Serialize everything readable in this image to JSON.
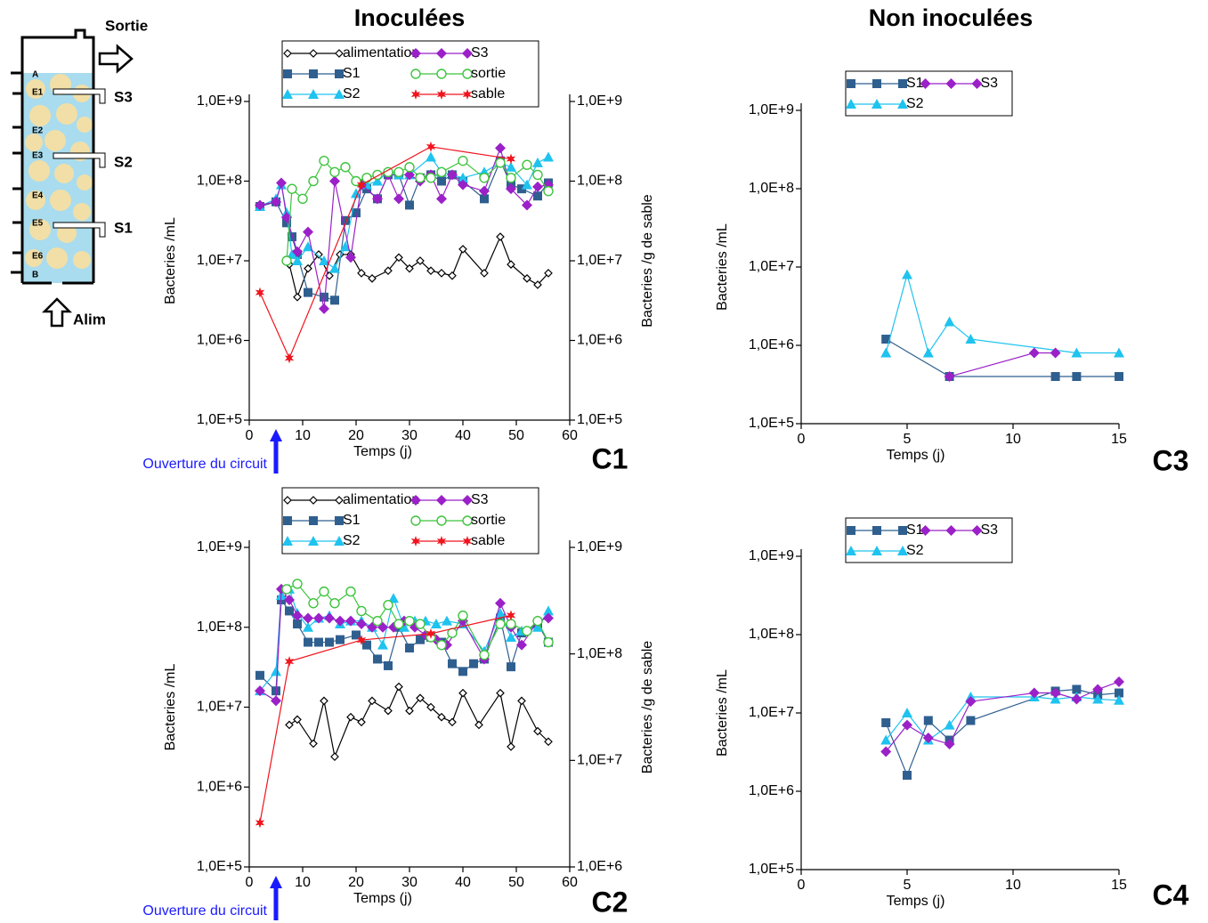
{
  "headings": [
    "Inoculées",
    "Non inoculées"
  ],
  "diagram": {
    "outlet": "Sortie",
    "inlet": "Alim",
    "ports": [
      "S3",
      "S2",
      "S1"
    ],
    "levels": [
      "A",
      "E1",
      "E2",
      "E3",
      "E4",
      "E5",
      "E6",
      "B"
    ]
  },
  "chart_data": [
    {
      "type": "line",
      "label": "C1",
      "log_y": true,
      "xlabel": "Temps (j)",
      "ylabel": "Bacteries /mL",
      "y2label": "Bacteries /g de sable",
      "annotation": {
        "text": "Ouverture du circuit",
        "x": 5
      },
      "xlim": [
        0,
        60
      ],
      "xticks": [
        0,
        10,
        20,
        30,
        40,
        50,
        60
      ],
      "ylim": [
        100000,
        1000000000
      ],
      "yticks": [
        {
          "value": 100000,
          "label": "1,0E+5"
        },
        {
          "value": 1000000,
          "label": "1,0E+6"
        },
        {
          "value": 10000000,
          "label": "1,0E+7"
        },
        {
          "value": 100000000,
          "label": "1,0E+8"
        },
        {
          "value": 1000000000,
          "label": "1,0E+9"
        }
      ],
      "y2lim": [
        100000,
        1000000000
      ],
      "y2ticks": [
        {
          "value": 100000,
          "label": "1,0E+5"
        },
        {
          "value": 1000000,
          "label": "1,0E+6"
        },
        {
          "value": 10000000,
          "label": "1,0E+7"
        },
        {
          "value": 100000000,
          "label": "1,0E+8"
        },
        {
          "value": 1000000000,
          "label": "1,0E+9"
        }
      ],
      "series": [
        {
          "name": "alimentation",
          "color": "#000000",
          "marker": "diamond-open",
          "x": [
            7.5,
            9,
            11,
            13,
            15,
            17,
            19,
            21,
            23,
            26,
            28,
            30,
            32,
            34,
            36,
            38,
            40,
            44,
            47,
            49,
            52,
            54,
            56
          ],
          "values": [
            9000000,
            3500000,
            8000000,
            12000000,
            6500000,
            12000000,
            12000000,
            7000000,
            6000000,
            7500000,
            11000000,
            8000000,
            10000000,
            7500000,
            7000000,
            6500000,
            14000000,
            7000000,
            20000000,
            9000000,
            6000000,
            5000000,
            7000000
          ]
        },
        {
          "name": "S1",
          "color": "#2f5f8f",
          "marker": "square",
          "x": [
            2,
            5,
            7,
            8,
            9,
            11,
            14,
            16,
            18,
            20,
            22,
            24,
            26,
            28,
            30,
            32,
            34,
            36,
            38,
            40,
            44,
            47,
            49,
            51,
            54,
            56
          ],
          "values": [
            48000000,
            55000000,
            30000000,
            20000000,
            12000000,
            4000000,
            3500000,
            3200000,
            32000000,
            40000000,
            80000000,
            60000000,
            120000000,
            120000000,
            50000000,
            110000000,
            120000000,
            100000000,
            120000000,
            100000000,
            60000000,
            180000000,
            90000000,
            80000000,
            65000000,
            95000000
          ]
        },
        {
          "name": "S2",
          "color": "#1ec3ef",
          "marker": "triangle",
          "x": [
            2,
            5,
            6,
            7,
            8,
            9,
            11,
            14,
            16,
            18,
            20,
            22,
            24,
            26,
            28,
            30,
            34,
            36,
            40,
            44,
            47,
            49,
            52,
            54,
            56
          ],
          "values": [
            48000000,
            60000000,
            90000000,
            40000000,
            12000000,
            10000000,
            15000000,
            10000000,
            8000000,
            15000000,
            70000000,
            90000000,
            100000000,
            130000000,
            120000000,
            120000000,
            200000000,
            130000000,
            110000000,
            130000000,
            170000000,
            150000000,
            90000000,
            170000000,
            200000000
          ]
        },
        {
          "name": "S3",
          "color": "#9b20c8",
          "marker": "diamond",
          "x": [
            2,
            5,
            6,
            7,
            9,
            11,
            14,
            16,
            19,
            21,
            24,
            26,
            28,
            30,
            32,
            34,
            36,
            38,
            40,
            44,
            47,
            49,
            52,
            54,
            56
          ],
          "values": [
            50000000,
            55000000,
            95000000,
            35000000,
            13000000,
            23000000,
            2500000,
            100000000,
            11000000,
            90000000,
            60000000,
            120000000,
            60000000,
            120000000,
            100000000,
            120000000,
            60000000,
            120000000,
            90000000,
            75000000,
            260000000,
            80000000,
            50000000,
            85000000,
            90000000
          ]
        },
        {
          "name": "sortie",
          "color": "#3ec43e",
          "marker": "circle-open",
          "x": [
            7,
            8,
            10,
            12,
            14,
            16,
            18,
            20,
            22,
            24,
            26,
            28,
            30,
            32,
            34,
            36,
            40,
            44,
            47,
            49,
            52,
            54,
            56
          ],
          "values": [
            10000000,
            80000000,
            60000000,
            100000000,
            180000000,
            130000000,
            150000000,
            100000000,
            110000000,
            120000000,
            130000000,
            130000000,
            150000000,
            110000000,
            110000000,
            130000000,
            180000000,
            110000000,
            170000000,
            110000000,
            160000000,
            120000000,
            75000000
          ]
        },
        {
          "name": "sable",
          "color": "#f0141e",
          "marker": "star",
          "axis": "y2",
          "x": [
            2,
            7.5,
            21,
            34,
            49
          ],
          "values": [
            4000000,
            600000,
            90000000,
            270000000,
            190000000
          ]
        }
      ]
    },
    {
      "type": "line",
      "label": "C2",
      "log_y": true,
      "xlabel": "Temps (j)",
      "ylabel": "Bacteries /mL",
      "y2label": "Bacteries /g de sable",
      "annotation": {
        "text": "Ouverture du circuit",
        "x": 5
      },
      "xlim": [
        0,
        60
      ],
      "xticks": [
        0,
        10,
        20,
        30,
        40,
        50,
        60
      ],
      "ylim": [
        100000,
        1000000000
      ],
      "yticks": [
        {
          "value": 100000,
          "label": "1,0E+5"
        },
        {
          "value": 1000000,
          "label": "1,0E+6"
        },
        {
          "value": 10000000,
          "label": "1,0E+7"
        },
        {
          "value": 100000000,
          "label": "1,0E+8"
        },
        {
          "value": 1000000000,
          "label": "1,0E+9"
        }
      ],
      "y2lim": [
        1000000,
        1000000000
      ],
      "y2ticks": [
        {
          "value": 1000000,
          "label": "1,0E+6"
        },
        {
          "value": 10000000,
          "label": "1,0E+7"
        },
        {
          "value": 100000000,
          "label": "1,0E+8"
        },
        {
          "value": 1000000000,
          "label": "1,0E+9"
        }
      ],
      "series": [
        {
          "name": "alimentation",
          "color": "#000000",
          "marker": "diamond-open",
          "x": [
            7.5,
            9,
            12,
            14,
            16,
            19,
            21,
            23,
            26,
            28,
            30,
            32,
            34,
            36,
            38,
            40,
            43,
            47,
            49,
            51,
            54,
            56
          ],
          "values": [
            6000000,
            7000000,
            3500000,
            12000000,
            2400000,
            7500000,
            6500000,
            12000000,
            9000000,
            18000000,
            9000000,
            13000000,
            10000000,
            7500000,
            6500000,
            15000000,
            6000000,
            15000000,
            3200000,
            12000000,
            5000000,
            3700000
          ]
        },
        {
          "name": "S1",
          "color": "#2f5f8f",
          "marker": "square",
          "x": [
            2,
            5,
            6,
            7.5,
            9,
            11,
            13,
            15,
            17,
            20,
            22,
            24,
            26,
            28,
            30,
            32,
            34,
            36,
            38,
            40,
            42,
            44,
            47,
            49,
            51,
            54,
            56
          ],
          "values": [
            25000000,
            16000000,
            220000000,
            160000000,
            110000000,
            65000000,
            65000000,
            65000000,
            70000000,
            80000000,
            60000000,
            40000000,
            33000000,
            100000000,
            55000000,
            70000000,
            75000000,
            65000000,
            35000000,
            28000000,
            35000000,
            40000000,
            130000000,
            32000000,
            85000000,
            110000000,
            65000000
          ]
        },
        {
          "name": "S2",
          "color": "#1ec3ef",
          "marker": "triangle",
          "x": [
            2,
            5,
            6,
            7.5,
            9,
            11,
            13,
            15,
            17,
            19,
            21,
            23,
            25,
            27,
            29,
            31,
            33,
            35,
            37,
            40,
            44,
            47,
            49,
            51,
            54,
            56
          ],
          "values": [
            16000000,
            28000000,
            250000000,
            300000000,
            150000000,
            100000000,
            130000000,
            140000000,
            110000000,
            120000000,
            120000000,
            100000000,
            60000000,
            230000000,
            100000000,
            120000000,
            120000000,
            110000000,
            120000000,
            110000000,
            50000000,
            150000000,
            75000000,
            90000000,
            100000000,
            160000000
          ]
        },
        {
          "name": "S3",
          "color": "#9b20c8",
          "marker": "diamond",
          "x": [
            2,
            5,
            6,
            7.5,
            9,
            11,
            13,
            15,
            17,
            19,
            21,
            23,
            25,
            27,
            29,
            31,
            33,
            35,
            37,
            40,
            44,
            47,
            49,
            51,
            54,
            56
          ],
          "values": [
            16000000,
            12000000,
            300000000,
            220000000,
            140000000,
            130000000,
            130000000,
            130000000,
            120000000,
            120000000,
            110000000,
            100000000,
            100000000,
            100000000,
            120000000,
            100000000,
            80000000,
            70000000,
            60000000,
            120000000,
            40000000,
            200000000,
            100000000,
            60000000,
            120000000,
            130000000
          ]
        },
        {
          "name": "sortie",
          "color": "#3ec43e",
          "marker": "circle-open",
          "x": [
            7,
            9,
            12,
            14,
            16,
            19,
            21,
            24,
            26,
            28,
            30,
            32,
            34,
            36,
            38,
            40,
            44,
            47,
            49,
            52,
            54,
            56
          ],
          "values": [
            300000000,
            350000000,
            200000000,
            280000000,
            200000000,
            280000000,
            160000000,
            120000000,
            190000000,
            110000000,
            120000000,
            110000000,
            75000000,
            60000000,
            85000000,
            140000000,
            45000000,
            110000000,
            110000000,
            90000000,
            120000000,
            65000000
          ]
        },
        {
          "name": "sable",
          "color": "#f0141e",
          "marker": "star",
          "axis": "y2",
          "x": [
            2,
            7.5,
            21,
            34,
            49
          ],
          "values": [
            2600000,
            85000000,
            135000000,
            155000000,
            230000000
          ]
        }
      ]
    },
    {
      "type": "line",
      "label": "C3",
      "log_y": true,
      "xlabel": "Temps (j)",
      "ylabel": "Bacteries /mL",
      "xlim": [
        0,
        15
      ],
      "xticks": [
        0,
        5,
        10,
        15
      ],
      "ylim": [
        100000,
        1000000000
      ],
      "yticks": [
        {
          "value": 100000,
          "label": "1,0E+5"
        },
        {
          "value": 1000000,
          "label": "1,0E+6"
        },
        {
          "value": 10000000,
          "label": "1,0E+7"
        },
        {
          "value": 100000000,
          "label": "1,0E+8"
        },
        {
          "value": 1000000000,
          "label": "1,0E+9"
        }
      ],
      "series": [
        {
          "name": "S1",
          "color": "#2f5f8f",
          "marker": "square",
          "x": [
            4,
            7,
            12,
            13,
            15
          ],
          "values": [
            1200000,
            400000,
            400000,
            400000,
            400000
          ]
        },
        {
          "name": "S2",
          "color": "#1ec3ef",
          "marker": "triangle",
          "x": [
            4,
            5,
            6,
            7,
            8,
            13,
            15
          ],
          "values": [
            800000,
            8000000,
            800000,
            2000000,
            1200000,
            800000,
            800000
          ]
        },
        {
          "name": "S3",
          "color": "#9b20c8",
          "marker": "diamond",
          "x": [
            7,
            11,
            12
          ],
          "values": [
            400000,
            800000,
            800000
          ]
        }
      ]
    },
    {
      "type": "line",
      "label": "C4",
      "log_y": true,
      "xlabel": "Temps (j)",
      "ylabel": "Bacteries /mL",
      "xlim": [
        0,
        15
      ],
      "xticks": [
        0,
        5,
        10,
        15
      ],
      "ylim": [
        100000,
        1000000000
      ],
      "yticks": [
        {
          "value": 100000,
          "label": "1,0E+5"
        },
        {
          "value": 1000000,
          "label": "1,0E+6"
        },
        {
          "value": 10000000,
          "label": "1,0E+7"
        },
        {
          "value": 100000000,
          "label": "1,0E+8"
        },
        {
          "value": 1000000000,
          "label": "1,0E+9"
        }
      ],
      "series": [
        {
          "name": "S1",
          "color": "#2f5f8f",
          "marker": "square",
          "x": [
            4,
            5,
            6,
            7,
            8,
            12,
            13,
            14,
            15
          ],
          "values": [
            7500000,
            1600000,
            8000000,
            4500000,
            8000000,
            19000000,
            20000000,
            17000000,
            18000000
          ]
        },
        {
          "name": "S2",
          "color": "#1ec3ef",
          "marker": "triangle",
          "x": [
            4,
            5,
            6,
            7,
            8,
            11,
            12,
            13,
            14,
            15
          ],
          "values": [
            4500000,
            10000000,
            4500000,
            7000000,
            16000000,
            16000000,
            15000000,
            16000000,
            15000000,
            14500000
          ]
        },
        {
          "name": "S3",
          "color": "#9b20c8",
          "marker": "diamond",
          "x": [
            4,
            5,
            6,
            7,
            8,
            11,
            12,
            13,
            14,
            15
          ],
          "values": [
            3200000,
            7000000,
            4800000,
            4000000,
            14000000,
            18000000,
            18000000,
            15000000,
            20000000,
            25000000
          ]
        }
      ]
    }
  ]
}
